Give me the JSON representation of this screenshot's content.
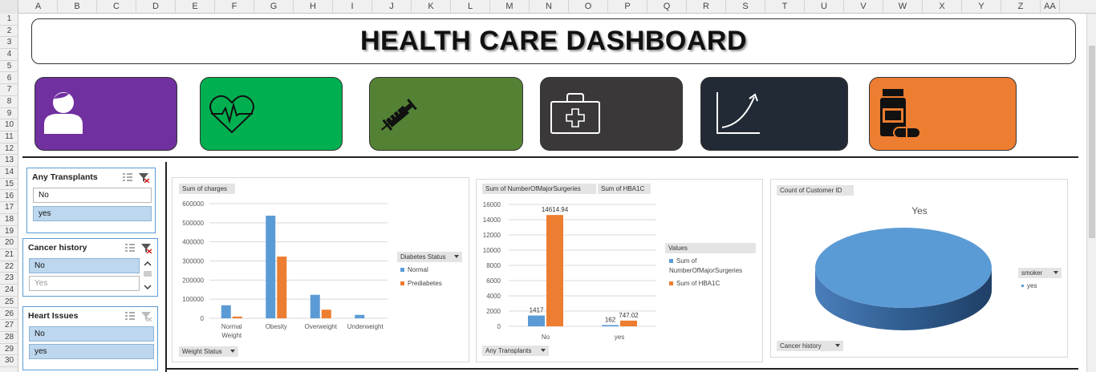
{
  "sheet": {
    "columns": [
      "A",
      "B",
      "C",
      "D",
      "E",
      "F",
      "G",
      "H",
      "I",
      "J",
      "K",
      "L",
      "M",
      "N",
      "O",
      "P",
      "Q",
      "R",
      "S",
      "T",
      "U",
      "V",
      "W",
      "X",
      "Y",
      "Z",
      "AA"
    ],
    "rows": [
      "1",
      "2",
      "3",
      "4",
      "5",
      "6",
      "7",
      "8",
      "9",
      "10",
      "11",
      "12",
      "13",
      "14",
      "15",
      "16",
      "17",
      "18",
      "19",
      "20",
      "21",
      "22",
      "23",
      "24",
      "25",
      "26",
      "27",
      "28",
      "29",
      "30"
    ]
  },
  "dashboard": {
    "title": "HEALTH CARE DASHBOARD"
  },
  "tiles": [
    {
      "name": "patient-tile",
      "icon": "user-icon",
      "color": "#7030a0"
    },
    {
      "name": "heart-tile",
      "icon": "heartbeat-icon",
      "color": "#00b050"
    },
    {
      "name": "syringe-tile",
      "icon": "syringe-icon",
      "color": "#548235"
    },
    {
      "name": "medkit-tile",
      "icon": "first-aid-kit-icon",
      "color": "#3a3838"
    },
    {
      "name": "trend-tile",
      "icon": "growth-curve-icon",
      "color": "#222a35"
    },
    {
      "name": "medicine-tile",
      "icon": "pill-bottle-icon",
      "color": "#ed7d31"
    }
  ],
  "slicers": {
    "transplants": {
      "title": "Any Transplants",
      "items": [
        {
          "label": "No",
          "selected": false
        },
        {
          "label": "yes",
          "selected": true
        }
      ]
    },
    "cancer": {
      "title": "Cancer history",
      "items": [
        {
          "label": "No",
          "selected": true
        },
        {
          "label": "Yes",
          "selected": false
        }
      ]
    },
    "heart": {
      "title": "Heart Issues",
      "items": [
        {
          "label": "No",
          "selected": true
        },
        {
          "label": "yes",
          "selected": true
        }
      ]
    }
  },
  "colors": {
    "blue": "#5b9bd5",
    "orange": "#ed7d31",
    "selected": "#bdd7ee"
  },
  "chart_data": [
    {
      "type": "bar",
      "value_field": "Sum of charges",
      "axis_field": "Weight Status",
      "legend_field": "Diabetes Status",
      "categories": [
        "Normal Weight",
        "Obesity",
        "Overweight",
        "Underweight"
      ],
      "category_lines": [
        [
          "Normal",
          "Weight"
        ],
        [
          "Obesity"
        ],
        [
          "Overweight"
        ],
        [
          "Underweight"
        ]
      ],
      "ylim": [
        0,
        600000
      ],
      "yticks": [
        "0",
        "100000",
        "200000",
        "300000",
        "400000",
        "500000",
        "600000"
      ],
      "series": [
        {
          "name": "Normal",
          "color": "#5b9bd5",
          "values": [
            68000,
            537000,
            123000,
            18000
          ]
        },
        {
          "name": "Prediabetes",
          "color": "#ed7d31",
          "values": [
            9000,
            323000,
            45000,
            0
          ]
        }
      ],
      "legend_position": "right",
      "grid": true
    },
    {
      "type": "bar",
      "value_fields": [
        "Sum of NumberOfMajorSurgeries",
        "Sum of HBA1C"
      ],
      "axis_field": "Any Transplants",
      "legend_title": "Values",
      "categories": [
        "No",
        "yes"
      ],
      "ylim": [
        0,
        16000
      ],
      "yticks": [
        "0",
        "2000",
        "4000",
        "6000",
        "8000",
        "10000",
        "12000",
        "14000",
        "16000"
      ],
      "series": [
        {
          "name": "Sum of NumberOfMajorSurgeries",
          "color": "#5b9bd5",
          "values": [
            1417,
            162
          ],
          "labels": [
            "1417",
            "162"
          ]
        },
        {
          "name": "Sum of HBA1C",
          "color": "#ed7d31",
          "values": [
            14614.94,
            747.02
          ],
          "labels": [
            "14614.94",
            "747.02"
          ]
        }
      ],
      "legend_position": "right",
      "grid": true
    },
    {
      "type": "pie",
      "value_field": "Count of Customer ID",
      "title": "Yes",
      "filter_field": "Cancer history",
      "legend_field": "smoker",
      "slices": [
        {
          "label": "yes",
          "value": 1,
          "color": "#5b9bd5"
        }
      ],
      "legend_position": "right"
    }
  ]
}
